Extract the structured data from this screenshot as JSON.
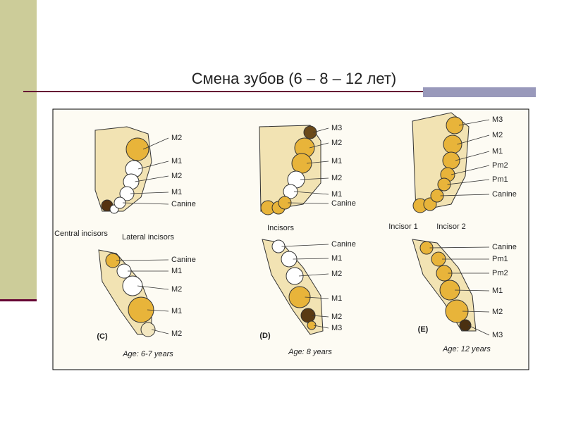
{
  "title": "Смена зубов  (6 – 8 – 12 лет)",
  "panels": [
    {
      "letter": "(C)",
      "age": "Age: 6-7 years",
      "upper_labels": [
        "M2",
        "M1",
        "M2",
        "M1",
        "Canine"
      ],
      "notes": [
        "Central incisors",
        "Lateral incisors"
      ],
      "lower_labels": [
        "Canine",
        "M1",
        "M2",
        "M1",
        "M2"
      ]
    },
    {
      "letter": "(D)",
      "age": "Age: 8 years",
      "upper_labels": [
        "M3",
        "M2",
        "M1",
        "M2",
        "M1",
        "Canine"
      ],
      "notes": [
        "Incisors"
      ],
      "lower_labels": [
        "Canine",
        "M1",
        "M2",
        "M1",
        "M2",
        "M3"
      ]
    },
    {
      "letter": "(E)",
      "age": "Age: 12 years",
      "upper_labels": [
        "M3",
        "M2",
        "M1",
        "Pm2",
        "Pm1",
        "Canine"
      ],
      "notes": [
        "Incisor 1",
        "Incisor 2"
      ],
      "lower_labels": [
        "Canine",
        "Pm1",
        "Pm2",
        "M1",
        "M2",
        "M3"
      ]
    }
  ]
}
